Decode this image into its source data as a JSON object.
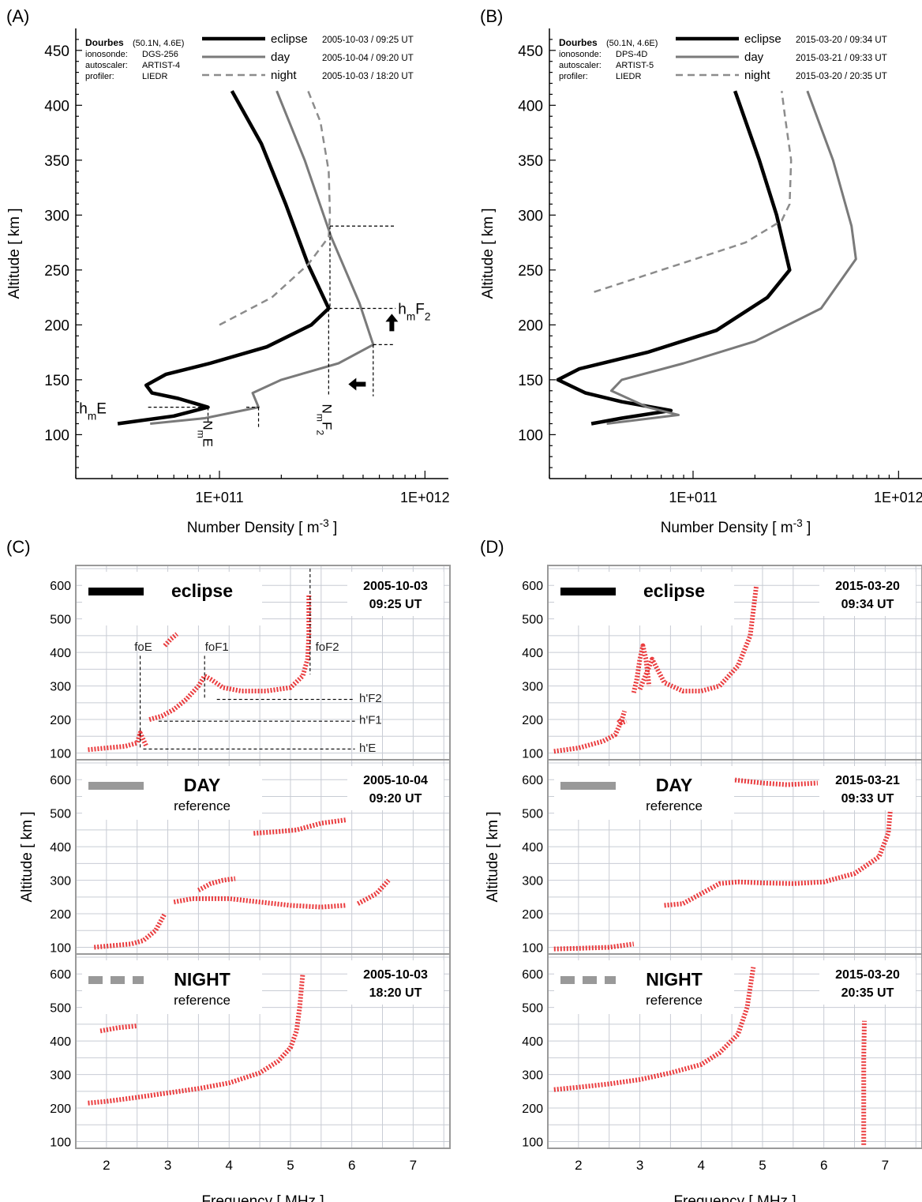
{
  "panel_labels": [
    "(A)",
    "(B)",
    "(C)",
    "(D)"
  ],
  "colors": {
    "eclipse": "#000000",
    "day": "#7a7a7a",
    "night": "#8c8c8c",
    "trace": "#e8282a",
    "grid": "#c8ccd4",
    "frame": "#9a9a9a"
  },
  "chart_data": [
    {
      "panel": "(A)",
      "type": "line",
      "xlabel": "Number Density [ m-3 ]",
      "ylabel": "Altitude [ km ]",
      "x_scale": "log",
      "xlim": [
        20000000000,
        1300000000000
      ],
      "ylim": [
        60,
        470
      ],
      "x_ticklabels": [
        "1E+011",
        "1E+012"
      ],
      "y_ticks": [
        100,
        150,
        200,
        250,
        300,
        350,
        400,
        450
      ],
      "info": {
        "station": "Dourbes",
        "coords": "(50.1N, 4.6E)",
        "rows": [
          [
            "ionosonde:",
            "DGS-256"
          ],
          [
            "autoscaler:",
            "ARTIST-4"
          ],
          [
            "profiler:",
            "LIEDR"
          ]
        ]
      },
      "legend": [
        {
          "name": "eclipse",
          "time": "2005-10-03 / 09:25 UT"
        },
        {
          "name": "day",
          "time": "2005-10-04 / 09:20 UT"
        },
        {
          "name": "night",
          "time": "2005-10-03 / 18:20 UT"
        }
      ],
      "annotations": [
        "hmF2",
        "hmE",
        "NmE",
        "NmF2"
      ],
      "series": [
        {
          "name": "eclipse",
          "x": [
            32000000000,
            60000000000,
            88000000000,
            63000000000,
            47000000000,
            44000000000,
            55000000000,
            90000000000,
            170000000000,
            280000000000,
            340000000000,
            270000000000,
            210000000000,
            160000000000,
            115000000000
          ],
          "y": [
            110,
            117,
            125,
            133,
            138,
            145,
            155,
            165,
            180,
            200,
            215,
            255,
            310,
            365,
            413
          ]
        },
        {
          "name": "day",
          "x": [
            46000000000,
            85000000000,
            155000000000,
            145000000000,
            200000000000,
            380000000000,
            560000000000,
            480000000000,
            350000000000,
            260000000000,
            190000000000
          ],
          "y": [
            110,
            115,
            125,
            138,
            150,
            165,
            182,
            220,
            280,
            350,
            413
          ]
        },
        {
          "name": "night",
          "x": [
            100000000000,
            180000000000,
            270000000000,
            340000000000,
            345000000000,
            340000000000,
            310000000000,
            270000000000
          ],
          "y": [
            200,
            225,
            255,
            280,
            300,
            340,
            385,
            413
          ]
        }
      ]
    },
    {
      "panel": "(B)",
      "type": "line",
      "xlabel": "Number Density [ m-3 ]",
      "ylabel": "Altitude [ km ]",
      "x_scale": "log",
      "xlim": [
        20000000000,
        1300000000000
      ],
      "ylim": [
        60,
        470
      ],
      "x_ticklabels": [
        "1E+011",
        "1E+012"
      ],
      "y_ticks": [
        100,
        150,
        200,
        250,
        300,
        350,
        400,
        450
      ],
      "info": {
        "station": "Dourbes",
        "coords": "(50.1N, 4.6E)",
        "rows": [
          [
            "ionosonde:",
            "DPS-4D"
          ],
          [
            "autoscaler:",
            "ARTIST-5"
          ],
          [
            "profiler:",
            "LIEDR"
          ]
        ]
      },
      "legend": [
        {
          "name": "eclipse",
          "time": "2015-03-20 / 09:34 UT"
        },
        {
          "name": "day",
          "time": "2015-03-21 / 09:33 UT"
        },
        {
          "name": "night",
          "time": "2015-03-20 / 20:35 UT"
        }
      ],
      "series": [
        {
          "name": "eclipse",
          "x": [
            32000000000,
            45000000000,
            78000000000,
            45000000000,
            30000000000,
            22000000000,
            28000000000,
            60000000000,
            130000000000,
            230000000000,
            295000000000,
            255000000000,
            210000000000,
            160000000000
          ],
          "y": [
            110,
            115,
            122,
            130,
            138,
            150,
            160,
            175,
            195,
            225,
            250,
            300,
            350,
            413
          ]
        },
        {
          "name": "day",
          "x": [
            38000000000,
            85000000000,
            60000000000,
            40000000000,
            45000000000,
            90000000000,
            200000000000,
            420000000000,
            620000000000,
            590000000000,
            480000000000,
            360000000000
          ],
          "y": [
            110,
            118,
            125,
            140,
            150,
            165,
            185,
            215,
            260,
            290,
            350,
            413
          ]
        },
        {
          "name": "night",
          "x": [
            33000000000,
            85000000000,
            180000000000,
            270000000000,
            295000000000,
            300000000000,
            280000000000,
            270000000000
          ],
          "y": [
            230,
            255,
            275,
            295,
            310,
            350,
            390,
            413
          ]
        }
      ]
    },
    {
      "panel": "(C)",
      "type": "scatter",
      "xlabel": "Frequency [ MHz ]",
      "ylabel": "Altitude [ km ]",
      "xlim": [
        1.5,
        7.6
      ],
      "ylim": [
        80,
        650
      ],
      "x_ticks": [
        2,
        3,
        4,
        5,
        6,
        7
      ],
      "y_ticks": [
        100,
        200,
        300,
        400,
        500,
        600
      ],
      "subpanels": [
        {
          "label": "eclipse",
          "sublabel": "",
          "date": "2005-10-03",
          "time": "09:25 UT",
          "annotations": [
            "foE",
            "foF1",
            "foF2",
            "h'F2",
            "h'F1",
            "h'E"
          ],
          "traces": [
            {
              "x": [
                1.7,
                2.0,
                2.3,
                2.5,
                2.55,
                2.6,
                2.65
              ],
              "y": [
                110,
                115,
                120,
                130,
                160,
                140,
                120
              ]
            },
            {
              "x": [
                2.7,
                2.9,
                3.1,
                3.3,
                3.5,
                3.6,
                3.7,
                3.9,
                4.2,
                4.6,
                5.0,
                5.2,
                5.28,
                5.3,
                5.3
              ],
              "y": [
                200,
                210,
                230,
                260,
                300,
                330,
                320,
                295,
                285,
                285,
                295,
                330,
                380,
                450,
                570
              ]
            },
            {
              "x": [
                2.95,
                3.05,
                3.15
              ],
              "y": [
                420,
                440,
                455
              ]
            }
          ]
        },
        {
          "label": "DAY",
          "sublabel": "reference",
          "date": "2005-10-04",
          "time": "09:20 UT",
          "traces": [
            {
              "x": [
                1.8,
                2.1,
                2.4,
                2.6,
                2.8,
                2.95
              ],
              "y": [
                100,
                105,
                110,
                120,
                150,
                200
              ]
            },
            {
              "x": [
                3.1,
                3.4,
                3.7,
                4.0,
                4.5,
                5.0,
                5.5,
                5.9
              ],
              "y": [
                235,
                245,
                245,
                245,
                235,
                225,
                220,
                225
              ]
            },
            {
              "x": [
                3.5,
                3.7,
                3.9,
                4.1
              ],
              "y": [
                270,
                290,
                300,
                305
              ]
            },
            {
              "x": [
                4.4,
                4.8,
                5.1,
                5.5,
                5.9
              ],
              "y": [
                440,
                445,
                450,
                470,
                480
              ]
            },
            {
              "x": [
                6.1,
                6.4,
                6.6
              ],
              "y": [
                230,
                260,
                300
              ]
            }
          ]
        },
        {
          "label": "NIGHT",
          "sublabel": "reference",
          "date": "2005-10-03",
          "time": "18:20 UT",
          "traces": [
            {
              "x": [
                1.7,
                2.0,
                2.5,
                3.0,
                3.5,
                4.0,
                4.5,
                4.8,
                5.0,
                5.1,
                5.15,
                5.2
              ],
              "y": [
                215,
                220,
                232,
                245,
                258,
                275,
                305,
                340,
                380,
                430,
                500,
                600
              ]
            },
            {
              "x": [
                1.9,
                2.2,
                2.5
              ],
              "y": [
                430,
                440,
                445
              ]
            }
          ]
        }
      ]
    },
    {
      "panel": "(D)",
      "type": "scatter",
      "xlabel": "Frequency [ MHz ]",
      "ylabel": "Altitude [ km ]",
      "xlim": [
        1.5,
        7.6
      ],
      "ylim": [
        80,
        650
      ],
      "x_ticks": [
        2,
        3,
        4,
        5,
        6,
        7
      ],
      "y_ticks": [
        100,
        200,
        300,
        400,
        500,
        600
      ],
      "subpanels": [
        {
          "label": "eclipse",
          "sublabel": "",
          "date": "2015-03-20",
          "time": "09:34 UT",
          "traces": [
            {
              "x": [
                1.6,
                2.0,
                2.4,
                2.6,
                2.7,
                2.75
              ],
              "y": [
                105,
                115,
                135,
                155,
                195,
                225
              ]
            },
            {
              "x": [
                2.65,
                2.7,
                2.78
              ],
              "y": [
                200,
                190,
                195
              ]
            },
            {
              "x": [
                2.9,
                2.95,
                3.0,
                3.05,
                3.1,
                3.15
              ],
              "y": [
                280,
                320,
                380,
                420,
                380,
                300
              ]
            },
            {
              "x": [
                3.0,
                3.2,
                3.4,
                3.7,
                4.0,
                4.3,
                4.6,
                4.8,
                4.9
              ],
              "y": [
                290,
                380,
                310,
                285,
                285,
                300,
                360,
                450,
                600
              ]
            }
          ]
        },
        {
          "label": "DAY",
          "sublabel": "reference",
          "date": "2015-03-21",
          "time": "09:33 UT",
          "traces": [
            {
              "x": [
                1.6,
                2.0,
                2.5,
                2.9
              ],
              "y": [
                95,
                97,
                100,
                110
              ]
            },
            {
              "x": [
                3.4,
                3.7,
                4.0,
                4.3,
                4.6,
                5.0,
                5.5,
                6.0,
                6.5,
                6.9,
                7.05,
                7.1
              ],
              "y": [
                225,
                230,
                260,
                290,
                295,
                292,
                290,
                295,
                320,
                370,
                440,
                540
              ]
            },
            {
              "x": [
                4.5,
                5.0,
                5.4,
                5.9
              ],
              "y": [
                600,
                590,
                585,
                590
              ]
            }
          ]
        },
        {
          "label": "NIGHT",
          "sublabel": "reference",
          "date": "2015-03-20",
          "time": "20:35 UT",
          "traces": [
            {
              "x": [
                1.6,
                2.0,
                2.5,
                3.0,
                3.5,
                4.0,
                4.3,
                4.6,
                4.75,
                4.85
              ],
              "y": [
                255,
                262,
                272,
                285,
                305,
                330,
                365,
                420,
                500,
                620
              ]
            },
            {
              "x": [
                6.65,
                6.65,
                6.65,
                6.66
              ],
              "y": [
                90,
                200,
                350,
                460
              ]
            }
          ]
        }
      ]
    }
  ]
}
